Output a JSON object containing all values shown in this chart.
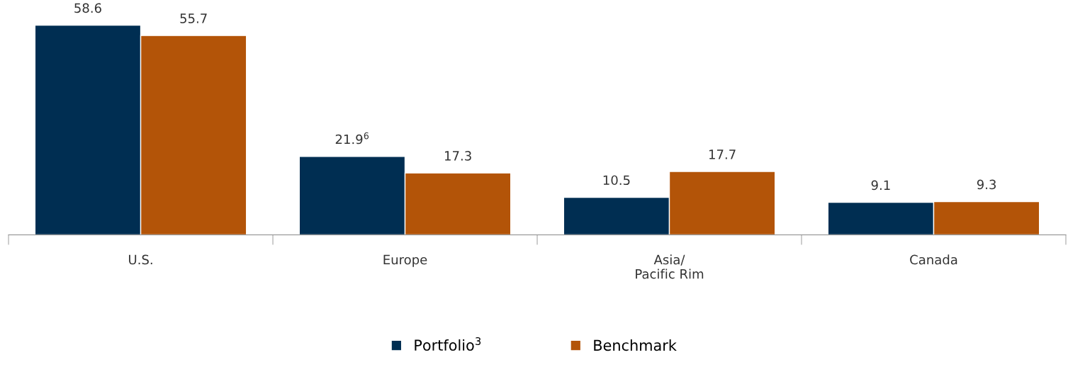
{
  "chart_data": {
    "type": "bar",
    "categories": [
      "U.S.",
      "Europe",
      "Asia/\nPacific Rim",
      "Canada"
    ],
    "series": [
      {
        "name": "Portfolio$^{3}$",
        "color": "#002e52",
        "values": [
          58.6,
          21.9,
          10.5,
          9.1
        ],
        "value_labels": [
          "58.6",
          "21.9$^{6}$",
          "10.5",
          "9.1"
        ]
      },
      {
        "name": "Benchmark",
        "color": "#b35408",
        "values": [
          55.7,
          17.3,
          17.7,
          9.3
        ],
        "value_labels": [
          "55.7",
          "17.3",
          "17.7",
          "9.3"
        ]
      }
    ],
    "legend": "bottom",
    "grid": false
  }
}
